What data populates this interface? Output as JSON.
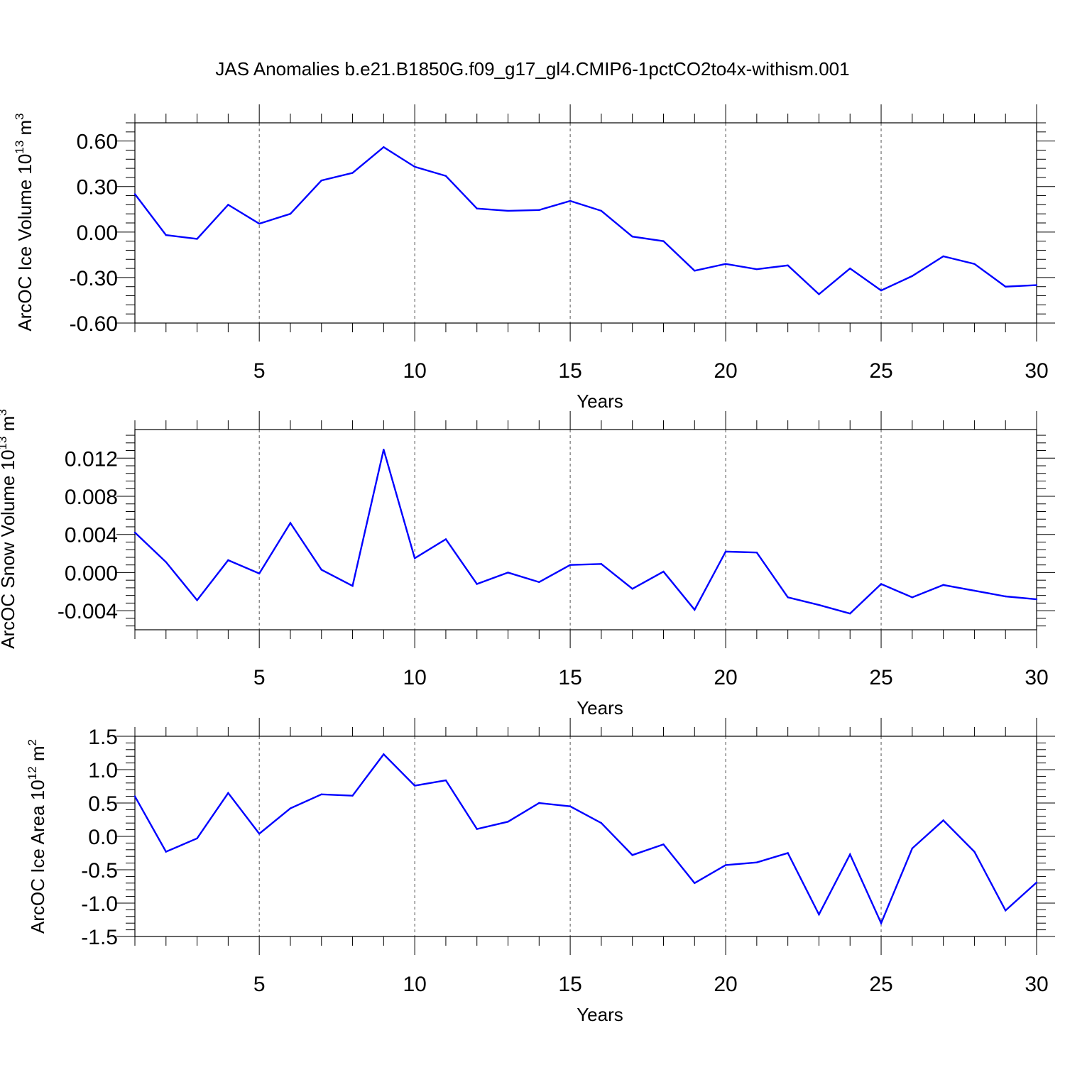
{
  "title": "JAS Anomalies b.e21.B1850G.f09_g17_gl4.CMIP6-1pctCO2to4x-withism.001",
  "colors": {
    "line": "#0000ff",
    "axis": "#000000",
    "grid": "#555555"
  },
  "chart_data": [
    {
      "type": "line",
      "xlabel": "Years",
      "ylabel": {
        "main": "ArcOC Ice Volume 10",
        "exp": "13",
        "unit": " m",
        "unit_exp": "3"
      },
      "xlim": [
        1,
        30
      ],
      "ylim": [
        -0.6,
        0.72
      ],
      "x_ticks": [
        "5",
        "10",
        "15",
        "20",
        "25",
        "30"
      ],
      "y_ticks": [
        "0.60",
        "0.30",
        "0.00",
        "-0.30",
        "-0.60"
      ],
      "grid": "vertical dashed at major x ticks",
      "x": [
        1,
        2,
        3,
        4,
        5,
        6,
        7,
        8,
        9,
        10,
        11,
        12,
        13,
        14,
        15,
        16,
        17,
        18,
        19,
        20,
        21,
        22,
        23,
        24,
        25,
        26,
        27,
        28,
        29,
        30
      ],
      "series": [
        {
          "values": [
            0.25,
            -0.02,
            -0.045,
            0.18,
            0.055,
            0.12,
            0.34,
            0.39,
            0.56,
            0.43,
            0.37,
            0.155,
            0.14,
            0.145,
            0.205,
            0.14,
            -0.03,
            -0.06,
            -0.255,
            -0.21,
            -0.245,
            -0.22,
            -0.41,
            -0.24,
            -0.385,
            -0.29,
            -0.16,
            -0.21,
            -0.36,
            -0.35
          ]
        }
      ]
    },
    {
      "type": "line",
      "xlabel": "Years",
      "ylabel": {
        "main": "ArcOC Snow Volume 10",
        "exp": "13",
        "unit": " m",
        "unit_exp": "3"
      },
      "xlim": [
        1,
        30
      ],
      "ylim": [
        -0.006,
        0.015
      ],
      "x_ticks": [
        "5",
        "10",
        "15",
        "20",
        "25",
        "30"
      ],
      "y_ticks": [
        "0.012",
        "0.008",
        "0.004",
        "0.000",
        "-0.004"
      ],
      "grid": "vertical dashed at major x ticks",
      "x": [
        1,
        2,
        3,
        4,
        5,
        6,
        7,
        8,
        9,
        10,
        11,
        12,
        13,
        14,
        15,
        16,
        17,
        18,
        19,
        20,
        21,
        22,
        23,
        24,
        25,
        26,
        27,
        28,
        29,
        30
      ],
      "series": [
        {
          "values": [
            0.0042,
            0.0011,
            -0.0029,
            0.0013,
            -0.0001,
            0.0052,
            0.0003,
            -0.0014,
            0.0129,
            0.0015,
            0.0035,
            -0.0012,
            0.0,
            -0.001,
            0.0008,
            0.0009,
            -0.0017,
            0.0001,
            -0.0039,
            0.0022,
            0.0021,
            -0.0026,
            -0.0034,
            -0.0043,
            -0.0012,
            -0.0026,
            -0.0013,
            -0.0019,
            -0.0025,
            -0.0028
          ]
        }
      ]
    },
    {
      "type": "line",
      "xlabel": "Years",
      "ylabel": {
        "main": "ArcOC Ice Area 10",
        "exp": "12",
        "unit": " m",
        "unit_exp": "2"
      },
      "xlim": [
        1,
        30
      ],
      "ylim": [
        -1.5,
        1.5
      ],
      "x_ticks": [
        "5",
        "10",
        "15",
        "20",
        "25",
        "30"
      ],
      "y_ticks": [
        "1.5",
        "1.0",
        "0.5",
        "0.0",
        "-0.5",
        "-1.0",
        "-1.5"
      ],
      "grid": "vertical dashed at major x ticks",
      "x": [
        1,
        2,
        3,
        4,
        5,
        6,
        7,
        8,
        9,
        10,
        11,
        12,
        13,
        14,
        15,
        16,
        17,
        18,
        19,
        20,
        21,
        22,
        23,
        24,
        25,
        26,
        27,
        28,
        29,
        30
      ],
      "series": [
        {
          "values": [
            0.6,
            -0.23,
            -0.03,
            0.65,
            0.04,
            0.42,
            0.63,
            0.61,
            1.23,
            0.76,
            0.84,
            0.11,
            0.22,
            0.5,
            0.45,
            0.2,
            -0.28,
            -0.12,
            -0.7,
            -0.43,
            -0.39,
            -0.25,
            -1.17,
            -0.27,
            -1.3,
            -0.18,
            0.24,
            -0.23,
            -1.11,
            -0.69
          ]
        }
      ]
    }
  ]
}
